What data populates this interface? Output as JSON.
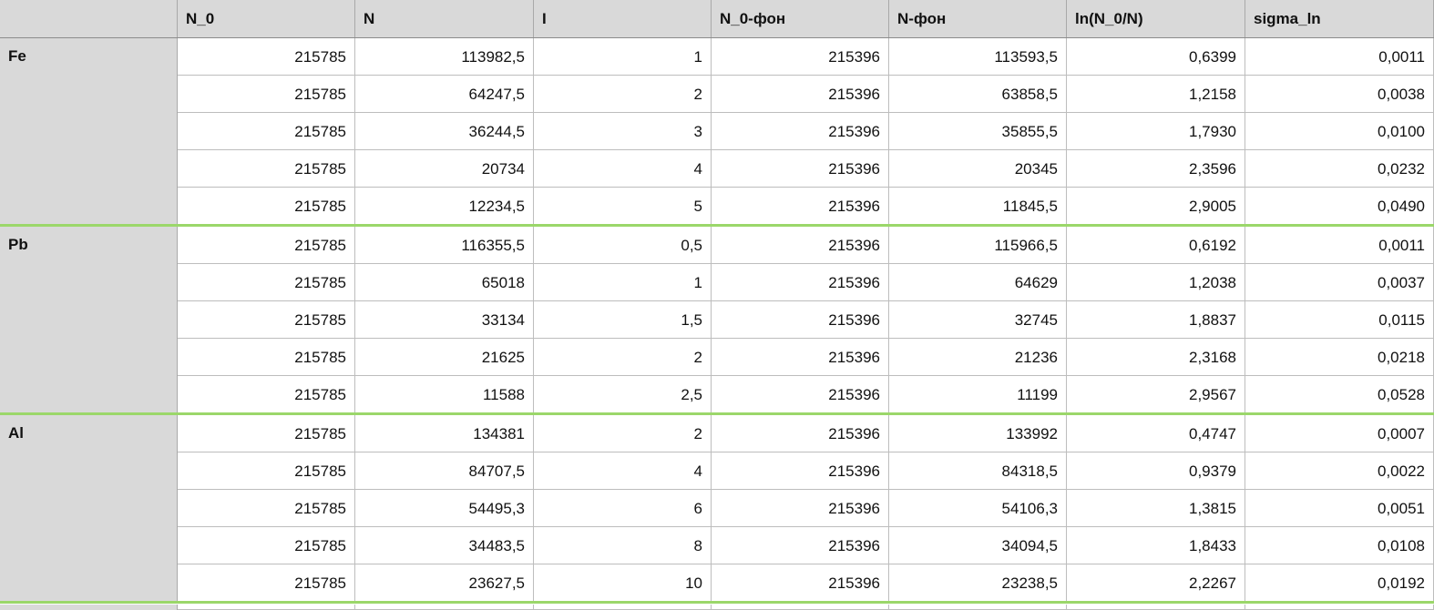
{
  "spreadsheet": {
    "columns": [
      "",
      "N_0",
      "N",
      "I",
      "N_0-фон",
      "N-фон",
      "ln(N_0/N)",
      "sigma_ln"
    ],
    "groups": [
      {
        "label": "Fe",
        "rows": [
          [
            "215785",
            "113982,5",
            "1",
            "215396",
            "113593,5",
            "0,6399",
            "0,0011"
          ],
          [
            "215785",
            "64247,5",
            "2",
            "215396",
            "63858,5",
            "1,2158",
            "0,0038"
          ],
          [
            "215785",
            "36244,5",
            "3",
            "215396",
            "35855,5",
            "1,7930",
            "0,0100"
          ],
          [
            "215785",
            "20734",
            "4",
            "215396",
            "20345",
            "2,3596",
            "0,0232"
          ],
          [
            "215785",
            "12234,5",
            "5",
            "215396",
            "11845,5",
            "2,9005",
            "0,0490"
          ]
        ]
      },
      {
        "label": "Pb",
        "rows": [
          [
            "215785",
            "116355,5",
            "0,5",
            "215396",
            "115966,5",
            "0,6192",
            "0,0011"
          ],
          [
            "215785",
            "65018",
            "1",
            "215396",
            "64629",
            "1,2038",
            "0,0037"
          ],
          [
            "215785",
            "33134",
            "1,5",
            "215396",
            "32745",
            "1,8837",
            "0,0115"
          ],
          [
            "215785",
            "21625",
            "2",
            "215396",
            "21236",
            "2,3168",
            "0,0218"
          ],
          [
            "215785",
            "11588",
            "2,5",
            "215396",
            "11199",
            "2,9567",
            "0,0528"
          ]
        ]
      },
      {
        "label": "Al",
        "rows": [
          [
            "215785",
            "134381",
            "2",
            "215396",
            "133992",
            "0,4747",
            "0,0007"
          ],
          [
            "215785",
            "84707,5",
            "4",
            "215396",
            "84318,5",
            "0,9379",
            "0,0022"
          ],
          [
            "215785",
            "54495,3",
            "6",
            "215396",
            "54106,3",
            "1,3815",
            "0,0051"
          ],
          [
            "215785",
            "34483,5",
            "8",
            "215396",
            "34094,5",
            "1,8433",
            "0,0108"
          ],
          [
            "215785",
            "23627,5",
            "10",
            "215396",
            "23238,5",
            "2,2267",
            "0,0192"
          ]
        ]
      }
    ],
    "colors": {
      "header_bg": "#d9d9d9",
      "group_separator": "#9bd76a",
      "grid_line": "#bdbdbd"
    }
  }
}
